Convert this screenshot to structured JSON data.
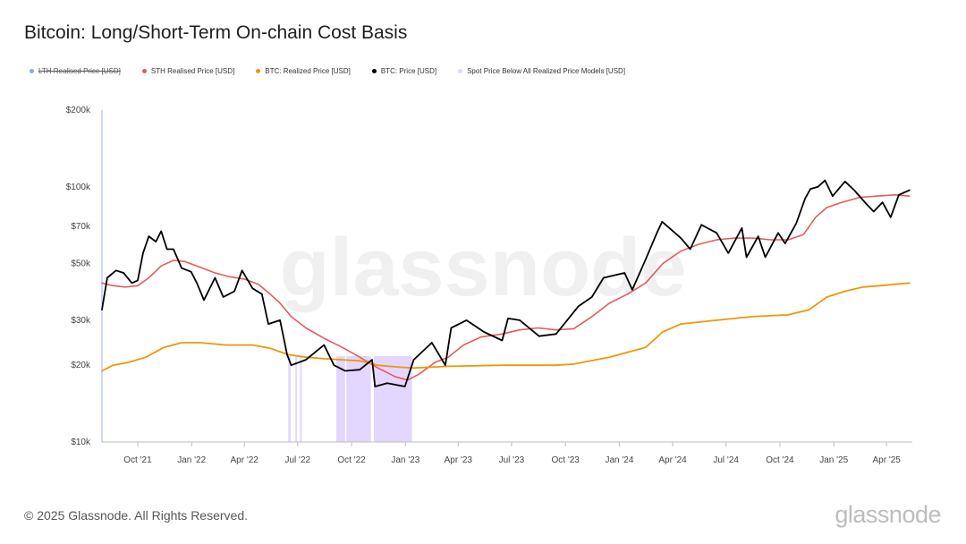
{
  "title": "Bitcoin: Long/Short-Term On-chain Cost Basis",
  "legend": [
    {
      "label": "LTH Realised Price [USD]",
      "color": "#8ea6e0",
      "disabled": true
    },
    {
      "label": "STH Realised Price [USD]",
      "color": "#e55b5b",
      "disabled": false
    },
    {
      "label": "BTC: Realized Price [USD]",
      "color": "#f0960a",
      "disabled": false
    },
    {
      "label": "BTC: Price [USD]",
      "color": "#000000",
      "disabled": false
    },
    {
      "label": "Spot Price Below All Realized Price Models [USD]",
      "color": "#e3d6ff",
      "disabled": false
    }
  ],
  "watermark": "glassnode",
  "footer": {
    "copyright": "© 2025 Glassnode. All Rights Reserved.",
    "brand": "glassnode"
  },
  "chart_data": {
    "type": "line",
    "title": "Bitcoin: Long/Short-Term On-chain Cost Basis",
    "yscale": "log",
    "ylim": [
      10000,
      200000
    ],
    "yticks": [
      {
        "label": "$200k",
        "value": 200000
      },
      {
        "label": "$100k",
        "value": 100000
      },
      {
        "label": "$70k",
        "value": 70000
      },
      {
        "label": "$50k",
        "value": 50000
      },
      {
        "label": "$30k",
        "value": 30000
      },
      {
        "label": "$20k",
        "value": 20000
      },
      {
        "label": "$10k",
        "value": 10000
      }
    ],
    "xlim": [
      "2021-08-01",
      "2025-05-15"
    ],
    "xticks": [
      {
        "label": "Oct '21",
        "date": "2021-10-01"
      },
      {
        "label": "Jan '22",
        "date": "2022-01-01"
      },
      {
        "label": "Apr '22",
        "date": "2022-04-01"
      },
      {
        "label": "Jul '22",
        "date": "2022-07-01"
      },
      {
        "label": "Oct '22",
        "date": "2022-10-01"
      },
      {
        "label": "Jan '23",
        "date": "2023-01-01"
      },
      {
        "label": "Apr '23",
        "date": "2023-04-01"
      },
      {
        "label": "Jul '23",
        "date": "2023-07-01"
      },
      {
        "label": "Oct '23",
        "date": "2023-10-01"
      },
      {
        "label": "Jan '24",
        "date": "2024-01-01"
      },
      {
        "label": "Apr '24",
        "date": "2024-04-01"
      },
      {
        "label": "Jul '24",
        "date": "2024-07-01"
      },
      {
        "label": "Oct '24",
        "date": "2024-10-01"
      },
      {
        "label": "Jan '25",
        "date": "2025-01-01"
      },
      {
        "label": "Apr '25",
        "date": "2025-04-01"
      }
    ],
    "series": [
      {
        "name": "STH Realised Price [USD]",
        "color": "#e55b5b",
        "points": [
          [
            "2021-08-01",
            42000
          ],
          [
            "2021-08-20",
            41000
          ],
          [
            "2021-09-10",
            40500
          ],
          [
            "2021-10-01",
            41000
          ],
          [
            "2021-10-20",
            44000
          ],
          [
            "2021-11-10",
            49000
          ],
          [
            "2021-12-01",
            51500
          ],
          [
            "2021-12-20",
            51000
          ],
          [
            "2022-01-15",
            48500
          ],
          [
            "2022-02-10",
            46000
          ],
          [
            "2022-03-05",
            44500
          ],
          [
            "2022-04-01",
            43500
          ],
          [
            "2022-04-25",
            41500
          ],
          [
            "2022-05-15",
            38000
          ],
          [
            "2022-06-01",
            35000
          ],
          [
            "2022-06-20",
            31000
          ],
          [
            "2022-07-15",
            28000
          ],
          [
            "2022-08-15",
            25500
          ],
          [
            "2022-09-15",
            23500
          ],
          [
            "2022-10-15",
            21500
          ],
          [
            "2022-11-15",
            19500
          ],
          [
            "2022-12-15",
            18000
          ],
          [
            "2023-01-05",
            17500
          ],
          [
            "2023-01-25",
            18500
          ],
          [
            "2023-02-20",
            20500
          ],
          [
            "2023-03-15",
            21500
          ],
          [
            "2023-04-10",
            24000
          ],
          [
            "2023-05-10",
            25800
          ],
          [
            "2023-06-15",
            26500
          ],
          [
            "2023-07-15",
            27500
          ],
          [
            "2023-08-15",
            28000
          ],
          [
            "2023-09-15",
            27500
          ],
          [
            "2023-10-15",
            27800
          ],
          [
            "2023-11-15",
            31000
          ],
          [
            "2023-12-15",
            35000
          ],
          [
            "2024-01-15",
            38000
          ],
          [
            "2024-02-15",
            42000
          ],
          [
            "2024-03-15",
            50000
          ],
          [
            "2024-04-15",
            56000
          ],
          [
            "2024-05-15",
            59500
          ],
          [
            "2024-06-15",
            62000
          ],
          [
            "2024-07-15",
            63000
          ],
          [
            "2024-08-15",
            63000
          ],
          [
            "2024-09-15",
            62000
          ],
          [
            "2024-10-15",
            62000
          ],
          [
            "2024-11-10",
            65000
          ],
          [
            "2024-12-01",
            76000
          ],
          [
            "2024-12-20",
            83000
          ],
          [
            "2025-01-15",
            87000
          ],
          [
            "2025-02-15",
            91000
          ],
          [
            "2025-03-15",
            92000
          ],
          [
            "2025-04-15",
            93000
          ],
          [
            "2025-05-10",
            92000
          ]
        ]
      },
      {
        "name": "BTC: Realized Price [USD]",
        "color": "#f0960a",
        "points": [
          [
            "2021-08-01",
            19000
          ],
          [
            "2021-08-20",
            20000
          ],
          [
            "2021-09-15",
            20500
          ],
          [
            "2021-10-15",
            21500
          ],
          [
            "2021-11-15",
            23500
          ],
          [
            "2021-12-15",
            24500
          ],
          [
            "2022-01-15",
            24500
          ],
          [
            "2022-03-01",
            24000
          ],
          [
            "2022-04-15",
            24000
          ],
          [
            "2022-05-15",
            23300
          ],
          [
            "2022-06-15",
            22000
          ],
          [
            "2022-07-15",
            21500
          ],
          [
            "2022-08-15",
            21200
          ],
          [
            "2022-09-15",
            21000
          ],
          [
            "2022-10-15",
            20800
          ],
          [
            "2022-11-15",
            20000
          ],
          [
            "2022-12-15",
            19700
          ],
          [
            "2023-01-15",
            19500
          ],
          [
            "2023-03-15",
            19800
          ],
          [
            "2023-06-15",
            20000
          ],
          [
            "2023-09-15",
            20000
          ],
          [
            "2023-10-15",
            20200
          ],
          [
            "2023-12-15",
            21500
          ],
          [
            "2024-02-15",
            23500
          ],
          [
            "2024-03-15",
            27000
          ],
          [
            "2024-04-15",
            29000
          ],
          [
            "2024-06-15",
            30000
          ],
          [
            "2024-08-15",
            31000
          ],
          [
            "2024-10-15",
            31500
          ],
          [
            "2024-11-20",
            33000
          ],
          [
            "2024-12-20",
            37000
          ],
          [
            "2025-01-20",
            39000
          ],
          [
            "2025-02-20",
            40500
          ],
          [
            "2025-03-20",
            41000
          ],
          [
            "2025-05-10",
            42000
          ]
        ]
      },
      {
        "name": "BTC: Price [USD]",
        "color": "#000000",
        "points": [
          [
            "2021-08-01",
            33000
          ],
          [
            "2021-08-10",
            44000
          ],
          [
            "2021-08-25",
            47000
          ],
          [
            "2021-09-07",
            46000
          ],
          [
            "2021-09-21",
            42000
          ],
          [
            "2021-10-01",
            43000
          ],
          [
            "2021-10-10",
            55000
          ],
          [
            "2021-10-20",
            64000
          ],
          [
            "2021-11-01",
            61000
          ],
          [
            "2021-11-10",
            67000
          ],
          [
            "2021-11-20",
            57000
          ],
          [
            "2021-12-01",
            57000
          ],
          [
            "2021-12-15",
            48000
          ],
          [
            "2021-12-31",
            46500
          ],
          [
            "2022-01-10",
            42000
          ],
          [
            "2022-01-22",
            36000
          ],
          [
            "2022-02-10",
            44000
          ],
          [
            "2022-02-24",
            37000
          ],
          [
            "2022-03-15",
            39000
          ],
          [
            "2022-03-28",
            47000
          ],
          [
            "2022-04-15",
            40000
          ],
          [
            "2022-05-01",
            38000
          ],
          [
            "2022-05-12",
            29000
          ],
          [
            "2022-06-01",
            30000
          ],
          [
            "2022-06-13",
            22000
          ],
          [
            "2022-06-20",
            20000
          ],
          [
            "2022-07-15",
            21000
          ],
          [
            "2022-08-15",
            24000
          ],
          [
            "2022-09-01",
            20000
          ],
          [
            "2022-09-20",
            19000
          ],
          [
            "2022-10-15",
            19200
          ],
          [
            "2022-11-05",
            21000
          ],
          [
            "2022-11-10",
            16500
          ],
          [
            "2022-12-01",
            17000
          ],
          [
            "2022-12-31",
            16500
          ],
          [
            "2023-01-15",
            21000
          ],
          [
            "2023-02-15",
            24500
          ],
          [
            "2023-03-10",
            20000
          ],
          [
            "2023-03-20",
            28000
          ],
          [
            "2023-04-15",
            30000
          ],
          [
            "2023-05-15",
            27000
          ],
          [
            "2023-06-15",
            25000
          ],
          [
            "2023-06-25",
            30500
          ],
          [
            "2023-07-15",
            30000
          ],
          [
            "2023-08-17",
            26000
          ],
          [
            "2023-09-15",
            26500
          ],
          [
            "2023-10-23",
            34000
          ],
          [
            "2023-11-15",
            37000
          ],
          [
            "2023-12-05",
            44000
          ],
          [
            "2024-01-10",
            46000
          ],
          [
            "2024-01-23",
            39500
          ],
          [
            "2024-02-15",
            52000
          ],
          [
            "2024-03-05",
            66000
          ],
          [
            "2024-03-14",
            73000
          ],
          [
            "2024-04-15",
            63000
          ],
          [
            "2024-05-01",
            57000
          ],
          [
            "2024-05-20",
            71000
          ],
          [
            "2024-06-15",
            66000
          ],
          [
            "2024-07-05",
            55000
          ],
          [
            "2024-07-28",
            69000
          ],
          [
            "2024-08-05",
            53000
          ],
          [
            "2024-08-25",
            64000
          ],
          [
            "2024-09-06",
            53000
          ],
          [
            "2024-09-28",
            66000
          ],
          [
            "2024-10-10",
            60000
          ],
          [
            "2024-10-29",
            72000
          ],
          [
            "2024-11-13",
            90000
          ],
          [
            "2024-11-22",
            98000
          ],
          [
            "2024-12-05",
            100000
          ],
          [
            "2024-12-17",
            106000
          ],
          [
            "2024-12-30",
            92000
          ],
          [
            "2025-01-20",
            105000
          ],
          [
            "2025-02-05",
            97000
          ],
          [
            "2025-02-25",
            86000
          ],
          [
            "2025-03-10",
            80000
          ],
          [
            "2025-03-25",
            87000
          ],
          [
            "2025-04-08",
            76000
          ],
          [
            "2025-04-22",
            93000
          ],
          [
            "2025-05-10",
            97000
          ]
        ]
      }
    ],
    "highlight_ranges": [
      [
        "2022-06-15",
        "2022-06-19"
      ],
      [
        "2022-06-27",
        "2022-06-30"
      ],
      [
        "2022-07-05",
        "2022-07-08"
      ],
      [
        "2022-09-05",
        "2022-09-20"
      ],
      [
        "2022-09-22",
        "2022-11-03"
      ],
      [
        "2022-11-08",
        "2023-01-12"
      ]
    ]
  }
}
